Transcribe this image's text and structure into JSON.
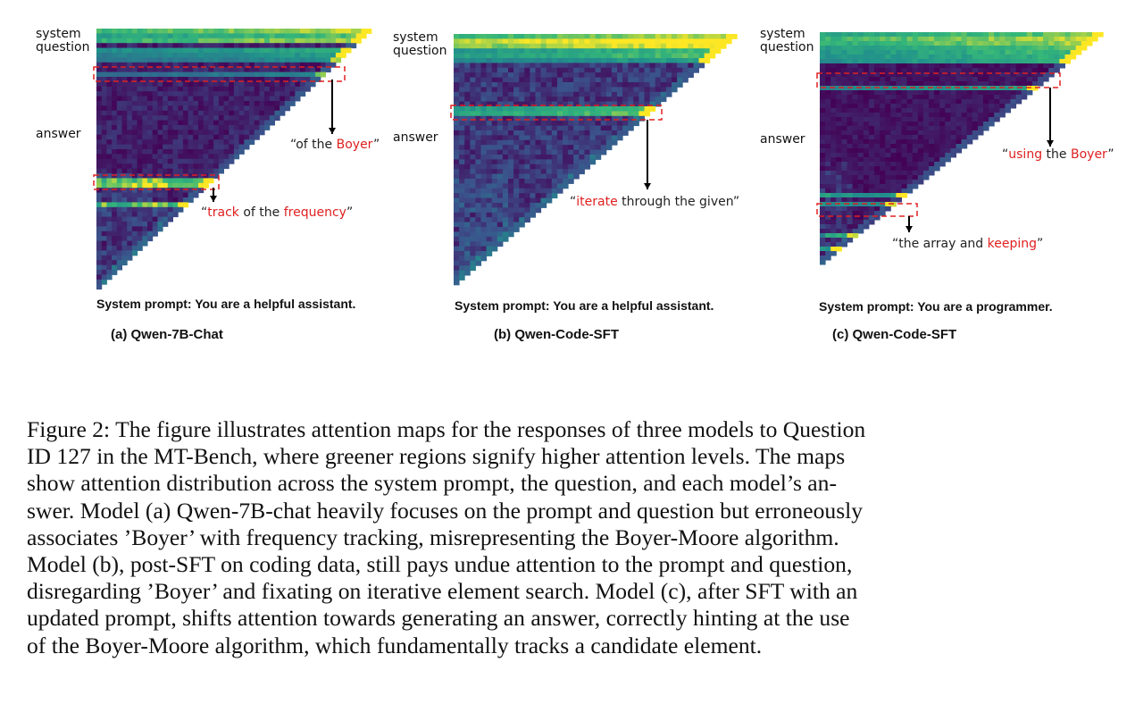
{
  "panels": [
    {
      "id": "a",
      "row_labels": {
        "system": "system",
        "question": "question",
        "answer": "answer"
      },
      "callouts": [
        {
          "parts": [
            {
              "t": "“of the ",
              "red": false
            },
            {
              "t": "Boyer",
              "red": true
            },
            {
              "t": "”",
              "red": false
            }
          ]
        },
        {
          "parts": [
            {
              "t": "“",
              "red": false
            },
            {
              "t": "track",
              "red": true
            },
            {
              "t": " of the ",
              "red": false
            },
            {
              "t": "frequency",
              "red": true
            },
            {
              "t": "”",
              "red": false
            }
          ]
        }
      ],
      "system_prompt": "System prompt: You are a helpful assistant.",
      "subcaption": "(a) Qwen-7B-Chat"
    },
    {
      "id": "b",
      "row_labels": {
        "system": "system",
        "question": "question",
        "answer": "answer"
      },
      "callouts": [
        {
          "parts": [
            {
              "t": "“",
              "red": false
            },
            {
              "t": "iterate",
              "red": true
            },
            {
              "t": " through the given”",
              "red": false
            }
          ]
        }
      ],
      "system_prompt": "System prompt: You are a helpful assistant.",
      "subcaption": "(b) Qwen-Code-SFT"
    },
    {
      "id": "c",
      "row_labels": {
        "system": "system",
        "question": "question",
        "answer": "answer"
      },
      "callouts": [
        {
          "parts": [
            {
              "t": "“",
              "red": false
            },
            {
              "t": "using",
              "red": true
            },
            {
              "t": " the ",
              "red": false
            },
            {
              "t": "Boyer",
              "red": true
            },
            {
              "t": "”",
              "red": false
            }
          ]
        },
        {
          "parts": [
            {
              "t": "“the array and ",
              "red": false
            },
            {
              "t": "keeping",
              "red": true
            },
            {
              "t": "”",
              "red": false
            }
          ]
        }
      ],
      "system_prompt": "System prompt: You are a programmer.",
      "subcaption": "(c) Qwen-Code-SFT"
    }
  ],
  "colors": {
    "low_attention": "#440154",
    "mid_attention": "#31688e",
    "high_attention": "#35b779",
    "peak_attention": "#fde725",
    "highlight_box": "#e02020"
  },
  "caption": {
    "lines": [
      "Figure 2: The figure illustrates attention maps for the responses of three models to Question",
      "ID 127 in the MT-Bench, where greener regions signify higher attention levels. The maps",
      "show attention distribution across the system prompt, the question, and each model’s an-",
      "swer. Model (a) Qwen-7B-chat heavily focuses on the prompt and question but erroneously",
      "associates ’Boyer’ with frequency tracking, misrepresenting the Boyer-Moore algorithm.",
      "Model (b), post-SFT on coding data, still pays undue attention to the prompt and question,",
      "disregarding ’Boyer’ and fixating on iterative element search. Model (c), after SFT with an",
      "updated prompt, shifts attention towards generating an answer, correctly hinting at the use",
      "of the Boyer-Moore algorithm, which fundamentally tracks a candidate element."
    ]
  }
}
